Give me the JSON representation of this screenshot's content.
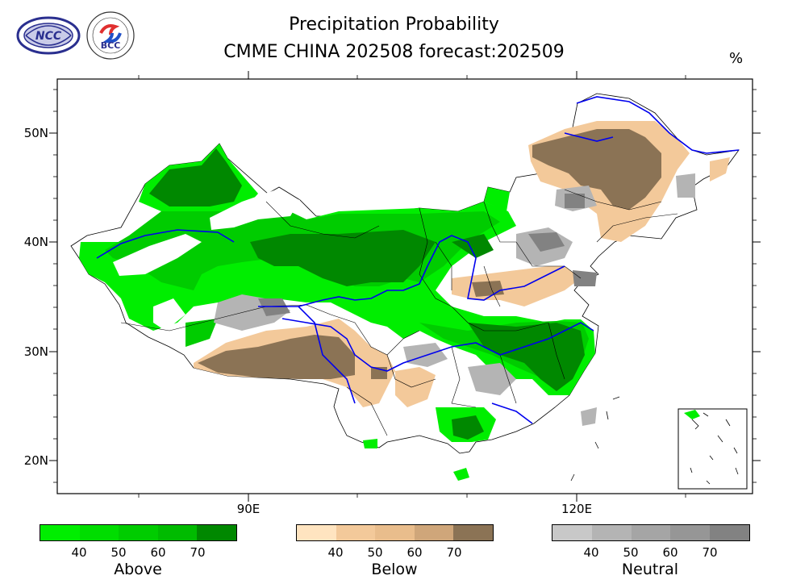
{
  "title_line1": "Precipitation Probability",
  "title_line2": "CMME CHINA 202508 forecast:202509",
  "unit": "%",
  "logos": {
    "ncc": "NCC",
    "bcc": "BCC"
  },
  "y_axis": {
    "ticks": [
      "50N",
      "40N",
      "30N",
      "20N"
    ],
    "values": [
      50,
      40,
      30,
      20
    ]
  },
  "x_axis": {
    "ticks": [
      "90E",
      "120E"
    ],
    "values": [
      90,
      120
    ]
  },
  "legends": [
    {
      "name": "Above",
      "ticks": [
        "40",
        "50",
        "60",
        "70"
      ],
      "colors": [
        "#00ee00",
        "#00dd00",
        "#00cc00",
        "#00bb00",
        "#008800"
      ]
    },
    {
      "name": "Below",
      "ticks": [
        "40",
        "50",
        "60",
        "70"
      ],
      "colors": [
        "#ffe4c0",
        "#f3c99a",
        "#e9bd8c",
        "#cfa67a",
        "#8b7355"
      ]
    },
    {
      "name": "Neutral",
      "ticks": [
        "40",
        "50",
        "60",
        "70"
      ],
      "colors": [
        "#c8c8c8",
        "#b4b4b4",
        "#a5a5a5",
        "#969696",
        "#828282"
      ]
    }
  ],
  "colors": {
    "river": "#0000ee",
    "border": "#000000",
    "frame": "#000000"
  }
}
